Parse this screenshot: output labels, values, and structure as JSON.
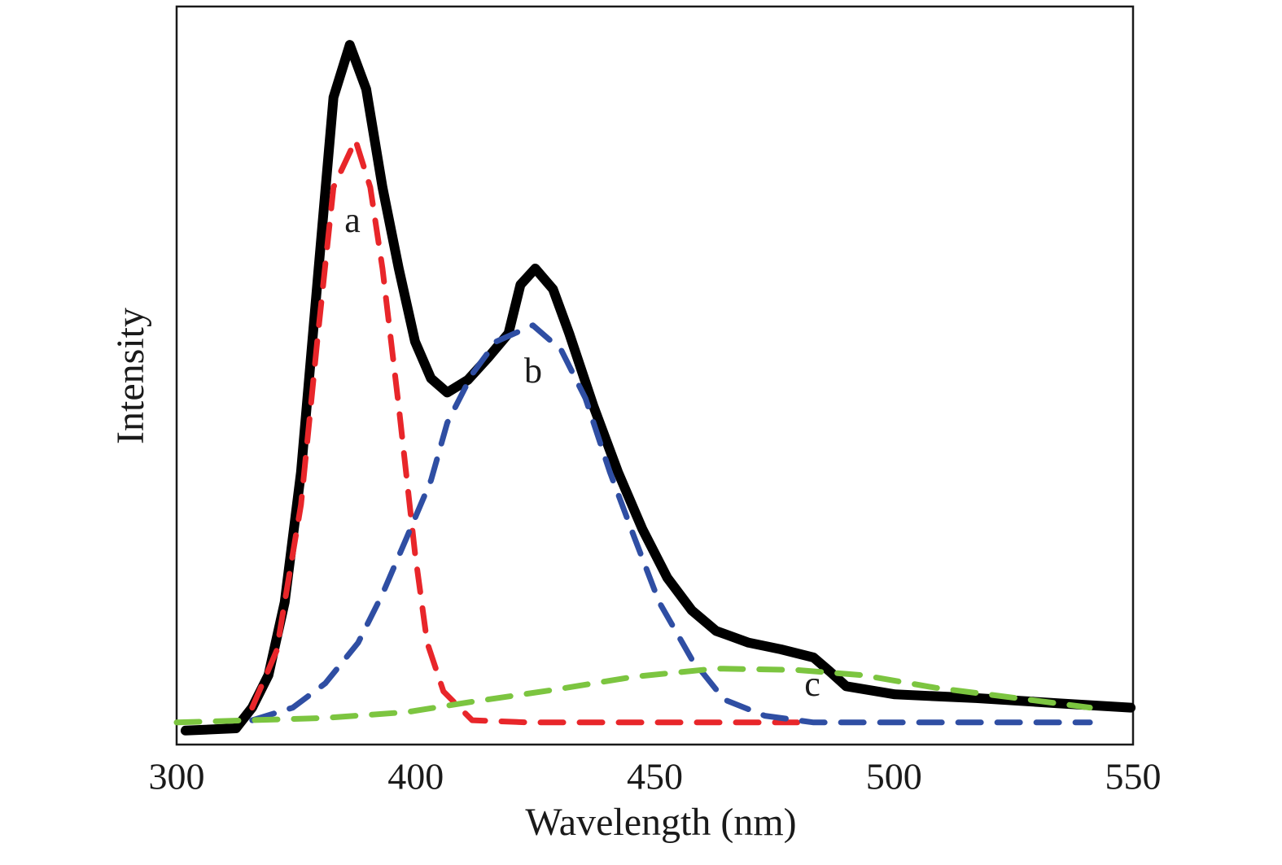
{
  "chart_data": {
    "type": "line",
    "xlabel": "Wavelength (nm)",
    "ylabel": "Intensity",
    "xlim": [
      300,
      550
    ],
    "xticks": [
      300,
      400,
      450,
      500,
      550
    ],
    "ylim": [
      0,
      100
    ],
    "grid": false,
    "annotations": [
      "a",
      "b",
      "c"
    ],
    "series": [
      {
        "color": "#000000",
        "dashed": false,
        "x": [
          303.7,
          324.8,
          331.6,
          338.4,
          345.2,
          352,
          358.8,
          365.6,
          372.4,
          379.3,
          386.1,
          392.9,
          399.7,
          403.2,
          406.6,
          410.9,
          415.1,
          419.4,
          421.9,
          425,
          428.7,
          432.1,
          437.2,
          442.3,
          447.4,
          452.6,
          457.7,
          462.8,
          469.6,
          476.4,
          483.2,
          486.6,
          490,
          500.2,
          517.2,
          534.2,
          549.5
        ],
        "values": [
          1.9,
          2.2,
          5.0,
          9.4,
          19.3,
          36.9,
          62.3,
          87.7,
          94.8,
          88.8,
          75.5,
          64.5,
          54.6,
          49.6,
          47.7,
          49.4,
          52.4,
          55.7,
          62.3,
          64.5,
          61.7,
          55.7,
          45.8,
          36.9,
          29.2,
          22.6,
          18.2,
          15.4,
          13.8,
          12.9,
          11.8,
          9.9,
          7.9,
          6.8,
          6.3,
          5.6,
          5.0
        ]
      },
      {
        "color": "#e8262a",
        "dashed": true,
        "x": [
          331.6,
          341.8,
          352,
          358.8,
          365.6,
          374.8,
          381,
          386.1,
          392.9,
          399.7,
          402.4,
          405.8,
          411.8,
          423.6,
          479.8
        ],
        "values": [
          5.0,
          12.7,
          32.5,
          54.6,
          75.5,
          81.9,
          75.5,
          64.5,
          45.8,
          25.9,
          13.8,
          7.2,
          3.3,
          3.0,
          3.0
        ]
      },
      {
        "color": "#2f4ea3",
        "dashed": true,
        "x": [
          331.6,
          348.6,
          362.2,
          375.9,
          386.1,
          396.3,
          403.2,
          406.6,
          411.8,
          416.8,
          424.5,
          430.4,
          435.5,
          440.6,
          445.7,
          450.9,
          457.7,
          464.5,
          473,
          483.2,
          541
        ],
        "values": [
          3.3,
          5.0,
          8.3,
          13.8,
          20.4,
          28.1,
          35.8,
          43.6,
          50.2,
          54.6,
          56.8,
          53.5,
          46.9,
          36.9,
          28.1,
          19.3,
          11.6,
          6.1,
          3.9,
          3.0,
          3.0
        ]
      },
      {
        "color": "#7cc540",
        "dashed": true,
        "x": [
          300,
          362.2,
          396.3,
          411.8,
          428.7,
          445.7,
          462.8,
          479.8,
          493.4,
          508.7,
          525.7,
          541
        ],
        "values": [
          3.0,
          3.6,
          4.4,
          5.8,
          7.4,
          9.2,
          10.3,
          10.1,
          9.4,
          7.7,
          6.3,
          5.0
        ]
      }
    ]
  }
}
